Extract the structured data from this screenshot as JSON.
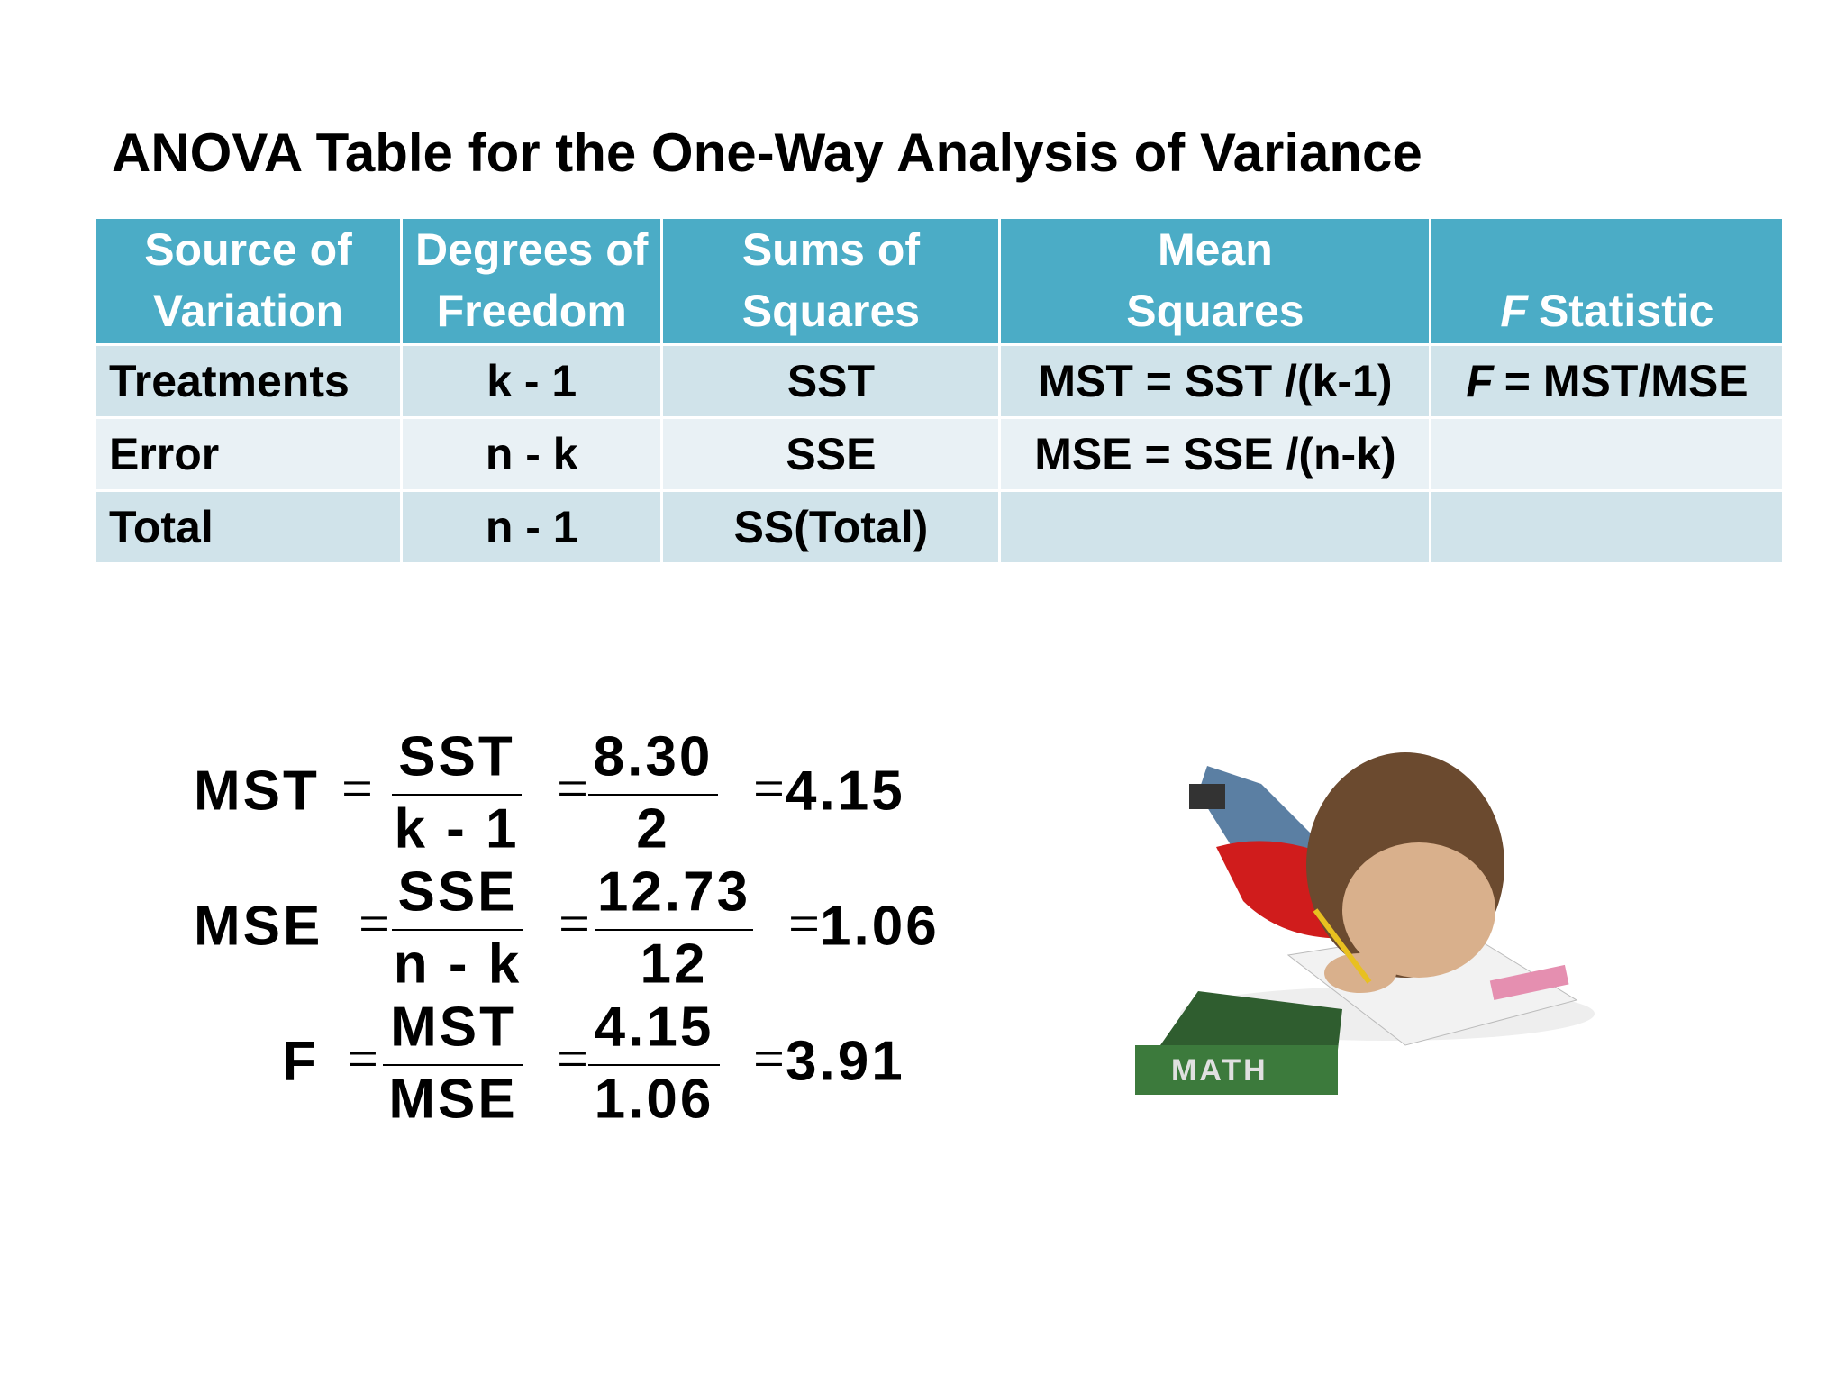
{
  "title": "ANOVA Table for the One-Way Analysis of Variance",
  "table": {
    "header": [
      {
        "lines": [
          "Source of",
          "Variation"
        ]
      },
      {
        "lines": [
          "Degrees of",
          "Freedom"
        ]
      },
      {
        "lines": [
          "Sums of",
          "Squares"
        ]
      },
      {
        "lines": [
          "Mean",
          "Squares"
        ]
      },
      {
        "italic": "F",
        "text": "Statistic"
      }
    ],
    "rows": [
      [
        "Treatments",
        "k - 1",
        "SST",
        "MST = SST /(k-1)",
        {
          "italic": "F",
          "text": "= MST/MSE"
        }
      ],
      [
        "Error",
        "n - k",
        "SSE",
        "MSE = SSE /(n-k)"
      ],
      [
        "Total",
        "n - 1",
        "SS(Total)"
      ]
    ]
  },
  "formulas": {
    "equals_sign": "=",
    "items": [
      {
        "lhs": "MST",
        "symbol_num": "SST",
        "symbol_den": "k - 1",
        "num": "8.30",
        "den": "2",
        "result": "4.15"
      },
      {
        "lhs": "MSE",
        "symbol_num": "SSE",
        "symbol_den": "n - k",
        "num": "12.73",
        "den": "12",
        "result": "1.06"
      },
      {
        "lhs": "F",
        "symbol_num": "MST",
        "symbol_den": "MSE",
        "num": "4.15",
        "den": "1.06",
        "result": "3.91"
      }
    ]
  },
  "illustration": {
    "book_label": "MATH"
  }
}
